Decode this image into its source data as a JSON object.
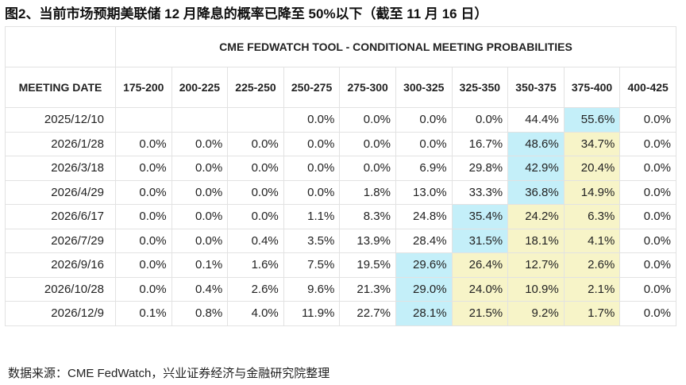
{
  "title": "图2、当前市场预期美联储 12 月降息的概率已降至 50%以下（截至 11 月 16 日）",
  "table": {
    "caption": "CME FEDWATCH TOOL - CONDITIONAL MEETING PROBABILITIES",
    "columns": [
      "MEETING DATE",
      "175-200",
      "200-225",
      "225-250",
      "250-275",
      "275-300",
      "300-325",
      "325-350",
      "350-375",
      "375-400",
      "400-425"
    ],
    "rows": [
      [
        "2025/12/10",
        null,
        null,
        null,
        "0.0%",
        "0.0%",
        "0.0%",
        "0.0%",
        "44.4%",
        "55.6%",
        "0.0%"
      ],
      [
        "2026/1/28",
        "0.0%",
        "0.0%",
        "0.0%",
        "0.0%",
        "0.0%",
        "0.0%",
        "16.7%",
        "48.6%",
        "34.7%",
        "0.0%"
      ],
      [
        "2026/3/18",
        "0.0%",
        "0.0%",
        "0.0%",
        "0.0%",
        "0.0%",
        "6.9%",
        "29.8%",
        "42.9%",
        "20.4%",
        "0.0%"
      ],
      [
        "2026/4/29",
        "0.0%",
        "0.0%",
        "0.0%",
        "0.0%",
        "1.8%",
        "13.0%",
        "33.3%",
        "36.8%",
        "14.9%",
        "0.0%"
      ],
      [
        "2026/6/17",
        "0.0%",
        "0.0%",
        "0.0%",
        "1.1%",
        "8.3%",
        "24.8%",
        "35.4%",
        "24.2%",
        "6.3%",
        "0.0%"
      ],
      [
        "2026/7/29",
        "0.0%",
        "0.0%",
        "0.4%",
        "3.5%",
        "13.9%",
        "28.4%",
        "31.5%",
        "18.1%",
        "4.1%",
        "0.0%"
      ],
      [
        "2026/9/16",
        "0.0%",
        "0.1%",
        "1.6%",
        "7.5%",
        "19.5%",
        "29.6%",
        "26.4%",
        "12.7%",
        "2.6%",
        "0.0%"
      ],
      [
        "2026/10/28",
        "0.0%",
        "0.4%",
        "2.6%",
        "9.6%",
        "21.3%",
        "29.0%",
        "24.0%",
        "10.9%",
        "2.1%",
        "0.0%"
      ],
      [
        "2026/12/9",
        "0.1%",
        "0.8%",
        "4.0%",
        "11.9%",
        "22.7%",
        "28.1%",
        "21.5%",
        "9.2%",
        "1.7%",
        "0.0%"
      ]
    ]
  },
  "source": "数据来源：CME FedWatch，兴业证券经济与金融研究院整理"
}
